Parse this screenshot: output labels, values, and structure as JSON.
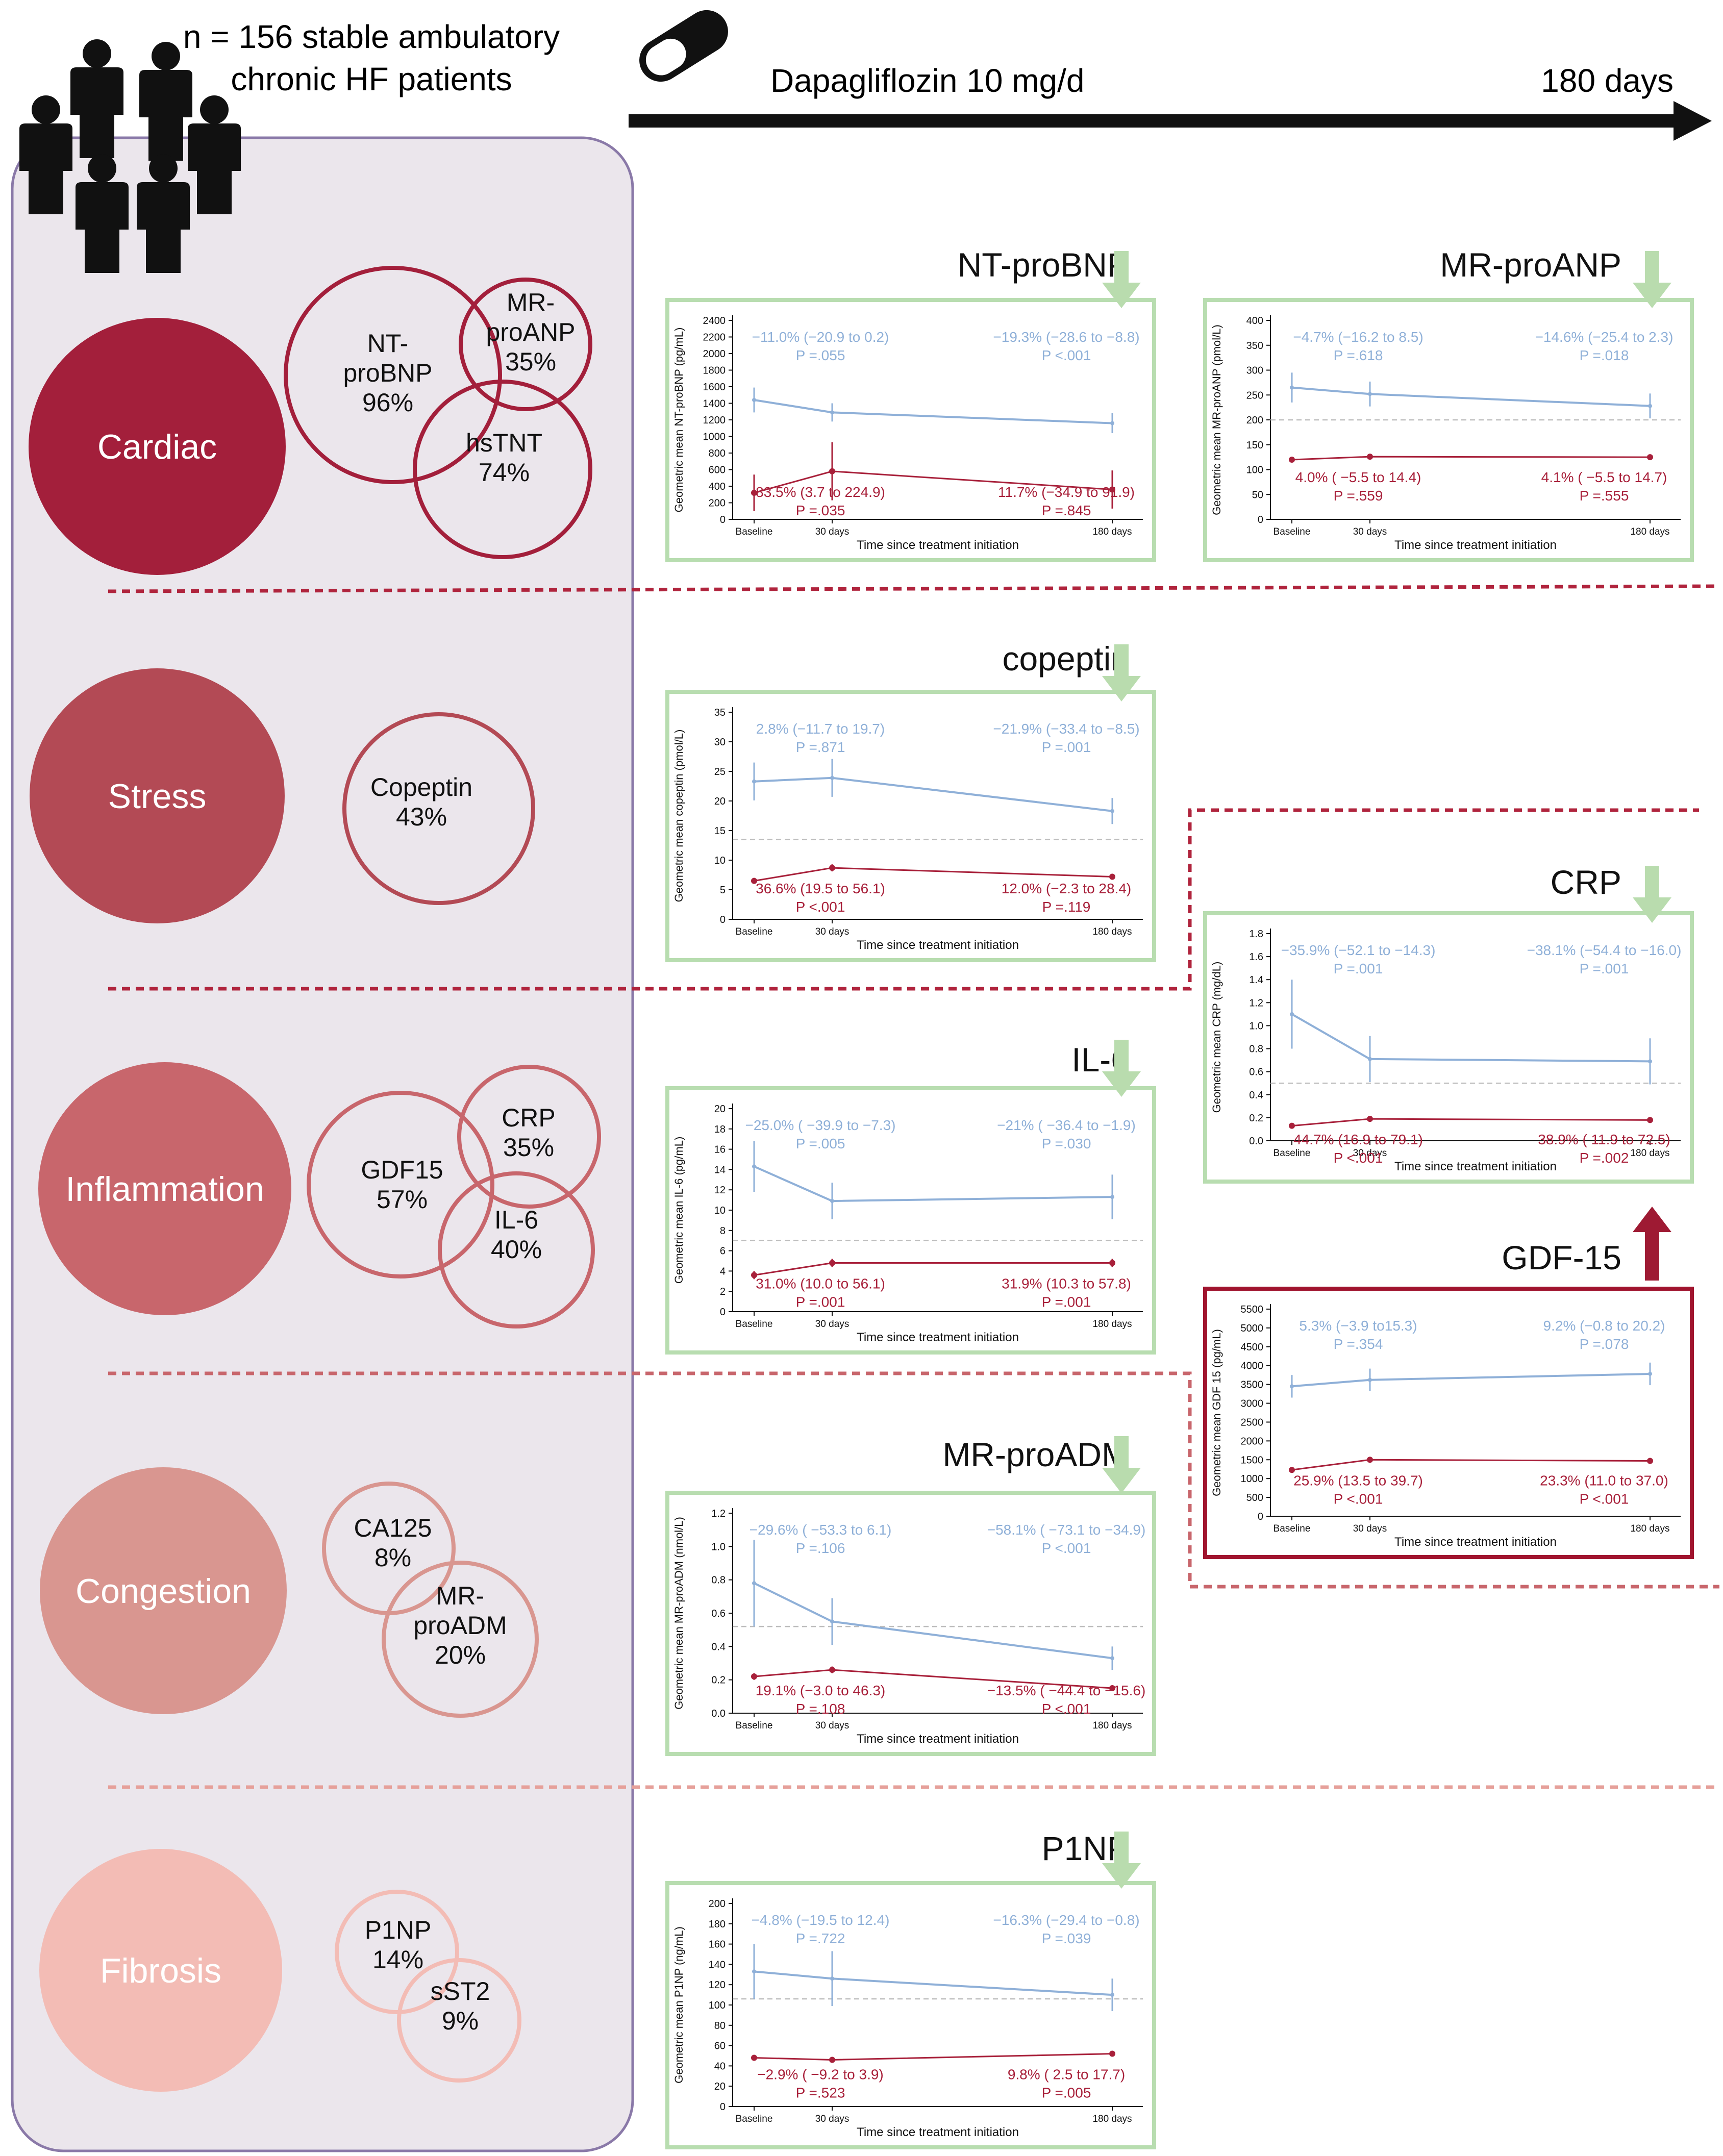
{
  "header": {
    "cohort_line1": "n = 156 stable ambulatory",
    "cohort_line2": "chronic HF patients",
    "treatment": "Dapagliflozin 10 mg/d",
    "duration": "180 days"
  },
  "axis_common": {
    "xlabel": "Time since treatment initiation",
    "ticks": [
      "Baseline",
      "30 days",
      "180 days"
    ]
  },
  "colors": {
    "dapagliflozin_blue": "#8fb0d8",
    "reference_red": "#a8203a",
    "panel_green": "#b8ddb0",
    "arrow_green": "#b9dcae",
    "arrow_red": "#9e1a33",
    "panel_red": "#a0142e",
    "bracket_fill": "#ebe6ec",
    "bracket_stroke": "#8a79a8"
  },
  "categories": [
    {
      "label": "Cardiac",
      "color": "#a31f3b",
      "markers": [
        {
          "lines": [
            "NT-",
            "proBNP",
            "96%"
          ]
        },
        {
          "lines": [
            "MR-",
            "proANP",
            "35%"
          ]
        },
        {
          "lines": [
            "hsTNT",
            "74%"
          ]
        }
      ]
    },
    {
      "label": "Stress",
      "color": "#b34a55",
      "markers": [
        {
          "lines": [
            "Copeptin",
            "43%"
          ]
        }
      ]
    },
    {
      "label": "Inflammation",
      "color": "#c8666c",
      "markers": [
        {
          "lines": [
            "GDF15",
            "57%"
          ]
        },
        {
          "lines": [
            "CRP",
            "35%"
          ]
        },
        {
          "lines": [
            "IL-6",
            "40%"
          ]
        }
      ]
    },
    {
      "label": "Congestion",
      "color": "#d99690",
      "markers": [
        {
          "lines": [
            "CA125",
            "8%"
          ]
        },
        {
          "lines": [
            "MR-",
            "proADM",
            "20%"
          ]
        }
      ]
    },
    {
      "label": "Fibrosis",
      "color": "#f3bcb5",
      "markers": [
        {
          "lines": [
            "P1NP",
            "14%"
          ]
        },
        {
          "lines": [
            "sST2",
            "9%"
          ]
        }
      ]
    }
  ],
  "chart_data": [
    {
      "type": "line",
      "title": "NT-proBNP",
      "direction": "down",
      "ylabel": "Geometric mean NT-proBNP (pg/mL)",
      "ylim": [
        0,
        2400
      ],
      "yticks": [
        0,
        200,
        400,
        600,
        800,
        1000,
        1200,
        1400,
        1600,
        1800,
        2000,
        2200,
        2400
      ],
      "reference_line": null,
      "series": [
        {
          "name": "upper",
          "values": [
            1440,
            1290,
            1160
          ],
          "errors": [
            150,
            110,
            120
          ]
        },
        {
          "name": "lower",
          "values": [
            320,
            580,
            360
          ],
          "errors": [
            220,
            350,
            230
          ]
        }
      ],
      "annotations": {
        "upper": [
          {
            "text": "−11.0% (−20.9 to 0.2)",
            "p": "P =.055"
          },
          {
            "text": "−19.3% (−28.6 to −8.8)",
            "p": "P <.001"
          }
        ],
        "lower": [
          {
            "text": "83.5% (3.7 to 224.9)",
            "p": "P =.035"
          },
          {
            "text": "11.7% (−34.9 to 91.9)",
            "p": "P =.845"
          }
        ]
      }
    },
    {
      "type": "line",
      "title": "MR-proANP",
      "direction": "down",
      "ylabel": "Geometric mean MR-proANP (pmol/L)",
      "ylim": [
        0,
        400
      ],
      "yticks": [
        0,
        50,
        100,
        150,
        200,
        250,
        300,
        350,
        400
      ],
      "reference_line": 200,
      "series": [
        {
          "name": "upper",
          "values": [
            265,
            252,
            228
          ],
          "errors": [
            30,
            25,
            25
          ]
        },
        {
          "name": "lower",
          "values": [
            120,
            126,
            125
          ],
          "errors": [
            4,
            4,
            4
          ]
        }
      ],
      "annotations": {
        "upper": [
          {
            "text": "−4.7% (−16.2 to 8.5)",
            "p": "P =.618"
          },
          {
            "text": "−14.6% (−25.4 to 2.3)",
            "p": "P =.018"
          }
        ],
        "lower": [
          {
            "text": "4.0% ( −5.5 to 14.4)",
            "p": "P =.559"
          },
          {
            "text": "4.1% ( −5.5 to 14.7)",
            "p": "P =.555"
          }
        ]
      }
    },
    {
      "type": "line",
      "title": "copeptin",
      "direction": "down",
      "ylabel": "Geometric mean copeptin (pmol/L)",
      "ylim": [
        0,
        35
      ],
      "yticks": [
        0,
        5,
        10,
        15,
        20,
        25,
        30,
        35
      ],
      "reference_line": 13.5,
      "series": [
        {
          "name": "upper",
          "values": [
            23.3,
            23.9,
            18.3
          ],
          "errors": [
            3.2,
            3.2,
            2.2
          ]
        },
        {
          "name": "lower",
          "values": [
            6.5,
            8.7,
            7.2
          ],
          "errors": [
            0.5,
            0.6,
            0.5
          ]
        }
      ],
      "annotations": {
        "upper": [
          {
            "text": "2.8% (−11.7 to 19.7)",
            "p": "P =.871"
          },
          {
            "text": "−21.9% (−33.4 to −8.5)",
            "p": "P =.001"
          }
        ],
        "lower": [
          {
            "text": "36.6% (19.5 to 56.1)",
            "p": "P <.001"
          },
          {
            "text": "12.0% (−2.3 to 28.4)",
            "p": "P =.119"
          }
        ]
      }
    },
    {
      "type": "line",
      "title": "CRP",
      "direction": "down",
      "ylabel": "Geometric mean CRP (mg/dL)",
      "ylim": [
        0,
        1.8
      ],
      "yticks": [
        0,
        0.2,
        0.4,
        0.6,
        0.8,
        1.0,
        1.2,
        1.4,
        1.6,
        1.8
      ],
      "reference_line": 0.5,
      "series": [
        {
          "name": "upper",
          "values": [
            1.1,
            0.71,
            0.69
          ],
          "errors": [
            0.3,
            0.2,
            0.2
          ]
        },
        {
          "name": "lower",
          "values": [
            0.13,
            0.19,
            0.18
          ],
          "errors": [
            0.02,
            0.02,
            0.02
          ]
        }
      ],
      "annotations": {
        "upper": [
          {
            "text": "−35.9% (−52.1 to −14.3)",
            "p": "P =.001"
          },
          {
            "text": "−38.1% (−54.4 to −16.0)",
            "p": "P =.001"
          }
        ],
        "lower": [
          {
            "text": "44.7% (16.9 to 79.1)",
            "p": "P <.001"
          },
          {
            "text": "38.9% ( 11.9 to 72.5)",
            "p": "P =.002"
          }
        ]
      }
    },
    {
      "type": "line",
      "title": "IL-6",
      "direction": "down",
      "ylabel": "Geometric mean IL-6 (pg/mL)",
      "ylim": [
        0,
        20
      ],
      "yticks": [
        0,
        2,
        4,
        6,
        8,
        10,
        12,
        14,
        16,
        18,
        20
      ],
      "reference_line": 7,
      "series": [
        {
          "name": "upper",
          "values": [
            14.3,
            10.9,
            11.3
          ],
          "errors": [
            2.5,
            1.8,
            2.2
          ]
        },
        {
          "name": "lower",
          "values": [
            3.6,
            4.8,
            4.8
          ],
          "errors": [
            0.4,
            0.4,
            0.4
          ]
        }
      ],
      "annotations": {
        "upper": [
          {
            "text": "−25.0% ( −39.9 to −7.3)",
            "p": "P =.005"
          },
          {
            "text": "−21% ( −36.4 to −1.9)",
            "p": "P =.030"
          }
        ],
        "lower": [
          {
            "text": "31.0% (10.0 to 56.1)",
            "p": "P =.001"
          },
          {
            "text": "31.9% (10.3 to 57.8)",
            "p": "P =.001"
          }
        ]
      }
    },
    {
      "type": "line",
      "title": "GDF-15",
      "direction": "up",
      "ylabel": "Geometric mean GDF 15 (pg/mL)",
      "ylim": [
        0,
        5500
      ],
      "yticks": [
        0,
        500,
        1000,
        1500,
        2000,
        2500,
        3000,
        3500,
        4000,
        4500,
        5000,
        5500
      ],
      "reference_line": null,
      "series": [
        {
          "name": "upper",
          "values": [
            3450,
            3620,
            3780
          ],
          "errors": [
            300,
            300,
            300
          ]
        },
        {
          "name": "lower",
          "values": [
            1230,
            1500,
            1470
          ],
          "errors": [
            60,
            60,
            60
          ]
        }
      ],
      "annotations": {
        "upper": [
          {
            "text": "5.3% (−3.9 to15.3)",
            "p": "P =.354"
          },
          {
            "text": "9.2% (−0.8 to 20.2)",
            "p": "P =.078"
          }
        ],
        "lower": [
          {
            "text": "25.9% (13.5 to 39.7)",
            "p": "P <.001"
          },
          {
            "text": "23.3% (11.0 to 37.0)",
            "p": "P <.001"
          }
        ]
      }
    },
    {
      "type": "line",
      "title": "MR-proADM",
      "direction": "down",
      "ylabel": "Geometric mean MR-proADM (nmol/L)",
      "ylim": [
        0,
        1.2
      ],
      "yticks": [
        0,
        0.2,
        0.4,
        0.6,
        0.8,
        1.0,
        1.2
      ],
      "reference_line": 0.52,
      "series": [
        {
          "name": "upper",
          "values": [
            0.78,
            0.55,
            0.33
          ],
          "errors": [
            0.26,
            0.14,
            0.07
          ]
        },
        {
          "name": "lower",
          "values": [
            0.22,
            0.26,
            0.15
          ],
          "errors": [
            0.02,
            0.02,
            0.01
          ]
        }
      ],
      "annotations": {
        "upper": [
          {
            "text": "−29.6% ( −53.3 to 6.1)",
            "p": "P =.106"
          },
          {
            "text": "−58.1% ( −73.1 to −34.9)",
            "p": "P <.001"
          }
        ],
        "lower": [
          {
            "text": "19.1% (−3.0 to 46.3)",
            "p": "P =.108"
          },
          {
            "text": "−13.5% ( −44.4 to −15.6)",
            "p": "P <.001"
          }
        ]
      }
    },
    {
      "type": "line",
      "title": "P1NP",
      "direction": "down",
      "ylabel": "Geometric mean P1NP (ng/mL)",
      "ylim": [
        0,
        200
      ],
      "yticks": [
        0,
        20,
        40,
        60,
        80,
        100,
        120,
        140,
        160,
        180,
        200
      ],
      "reference_line": 106,
      "series": [
        {
          "name": "upper",
          "values": [
            133,
            126,
            110
          ],
          "errors": [
            27,
            27,
            16
          ]
        },
        {
          "name": "lower",
          "values": [
            48,
            46,
            52
          ],
          "errors": [
            2,
            2,
            2
          ]
        }
      ],
      "annotations": {
        "upper": [
          {
            "text": "−4.8% (−19.5 to 12.4)",
            "p": "P =.722"
          },
          {
            "text": "−16.3% (−29.4 to −0.8)",
            "p": "P =.039"
          }
        ],
        "lower": [
          {
            "text": "−2.9% ( −9.2 to 3.9)",
            "p": "P =.523"
          },
          {
            "text": "9.8% ( 2.5 to 17.7)",
            "p": "P =.005"
          }
        ]
      }
    }
  ]
}
